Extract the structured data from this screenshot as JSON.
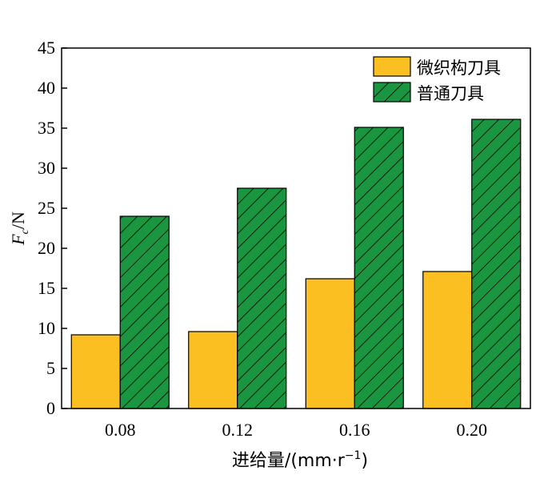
{
  "chart_data": {
    "type": "bar",
    "categories": [
      "0.08",
      "0.12",
      "0.16",
      "0.20"
    ],
    "series": [
      {
        "name": "微织构刀具",
        "values": [
          9.2,
          9.6,
          16.2,
          17.1
        ],
        "color": "#fbbf22",
        "pattern": "solid"
      },
      {
        "name": "普通刀具",
        "values": [
          24.0,
          27.5,
          35.1,
          36.1
        ],
        "color": "#1a9641",
        "pattern": "diagonal-hatch"
      }
    ],
    "xlabel": "进给量/(mm·r",
    "xlabel_sup": "−1",
    "xlabel_close": ")",
    "ylabel_main": "F",
    "ylabel_sub": "c",
    "ylabel_unit": "/N",
    "ylim": [
      0,
      45
    ],
    "yticks": [
      "0",
      "5",
      "10",
      "15",
      "20",
      "25",
      "30",
      "35",
      "40",
      "45"
    ],
    "grid": false,
    "legend_position": "top-right"
  }
}
